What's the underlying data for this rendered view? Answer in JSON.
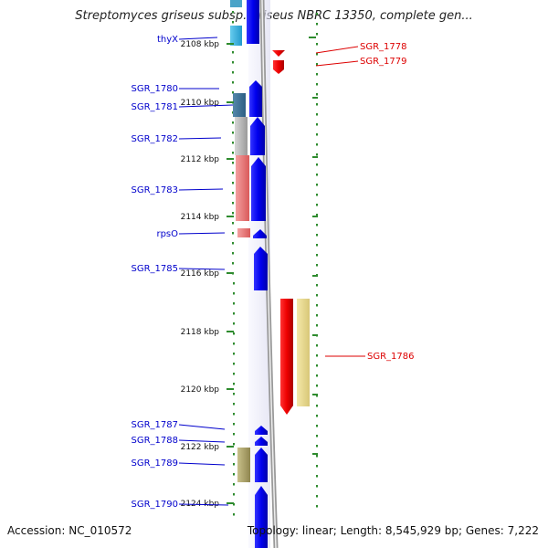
{
  "title": "Streptomyces griseus subsp. griseus NBRC 13350, complete gen...",
  "footer": {
    "accession": "Accession: NC_010572",
    "summary": "Topology: linear; Length: 8,545,929 bp; Genes: 7,222"
  },
  "ticks": [
    "2108 kbp",
    "2110 kbp",
    "2112 kbp",
    "2114 kbp",
    "2116 kbp",
    "2118 kbp",
    "2120 kbp",
    "2122 kbp",
    "2124 kbp"
  ],
  "colors": {
    "forward_gene": "#0000ee",
    "reverse_gene": "#ee0000",
    "left_label": "#0000cc",
    "right_label": "#dd0000",
    "dotted_track": "#2e8b2e",
    "backbone": "#888888"
  },
  "genes_left": [
    {
      "label": "thyX"
    },
    {
      "label": "SGR_1780"
    },
    {
      "label": "SGR_1781"
    },
    {
      "label": "SGR_1782"
    },
    {
      "label": "SGR_1783"
    },
    {
      "label": "rpsO"
    },
    {
      "label": "SGR_1785"
    },
    {
      "label": "SGR_1787"
    },
    {
      "label": "SGR_1788"
    },
    {
      "label": "SGR_1789"
    },
    {
      "label": "SGR_1790"
    }
  ],
  "genes_right": [
    {
      "label": "SGR_1778"
    },
    {
      "label": "SGR_1779"
    },
    {
      "label": "SGR_1786"
    }
  ]
}
